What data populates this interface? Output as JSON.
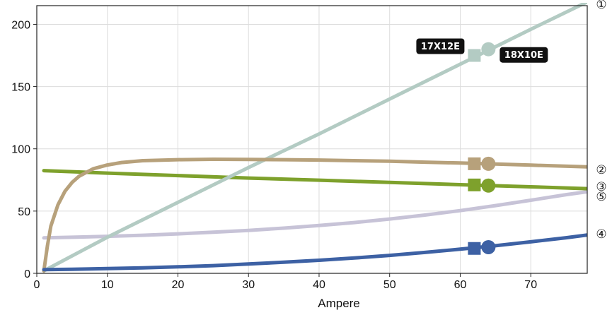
{
  "chart_data": {
    "type": "line",
    "title": "",
    "xlabel": "Ampere",
    "ylabel": "",
    "xlim": [
      0,
      78
    ],
    "ylim": [
      0,
      215
    ],
    "x_ticks": [
      0,
      10,
      20,
      30,
      40,
      50,
      60,
      70
    ],
    "y_ticks": [
      0,
      50,
      100,
      150,
      200
    ],
    "grid": true,
    "series": [
      {
        "name": "①",
        "color": "#b3cbc3",
        "points": [
          [
            1,
            2
          ],
          [
            10,
            29
          ],
          [
            20,
            57
          ],
          [
            30,
            85
          ],
          [
            40,
            112
          ],
          [
            50,
            140
          ],
          [
            60,
            168
          ],
          [
            70,
            196
          ],
          [
            78,
            218
          ]
        ]
      },
      {
        "name": "②",
        "color": "#b7a17b",
        "points": [
          [
            1,
            2
          ],
          [
            1.5,
            22
          ],
          [
            2,
            38
          ],
          [
            3,
            55
          ],
          [
            4,
            66
          ],
          [
            5,
            73
          ],
          [
            6,
            78
          ],
          [
            7,
            81
          ],
          [
            8,
            84
          ],
          [
            10,
            87
          ],
          [
            12,
            89
          ],
          [
            15,
            90.5
          ],
          [
            20,
            91.3
          ],
          [
            25,
            91.6
          ],
          [
            30,
            91.5
          ],
          [
            35,
            91.3
          ],
          [
            40,
            91
          ],
          [
            45,
            90.5
          ],
          [
            50,
            90
          ],
          [
            55,
            89.3
          ],
          [
            60,
            88.6
          ],
          [
            65,
            87.8
          ],
          [
            70,
            86.9
          ],
          [
            78,
            85.5
          ]
        ]
      },
      {
        "name": "③",
        "color": "#7ea12c",
        "points": [
          [
            1,
            82.5
          ],
          [
            10,
            80.5
          ],
          [
            20,
            78.5
          ],
          [
            30,
            76.5
          ],
          [
            40,
            74.8
          ],
          [
            50,
            73
          ],
          [
            60,
            71.2
          ],
          [
            70,
            69.5
          ],
          [
            78,
            68
          ]
        ]
      },
      {
        "name": "④",
        "color": "#3d61a4",
        "points": [
          [
            1,
            3
          ],
          [
            5,
            3.3
          ],
          [
            10,
            3.8
          ],
          [
            15,
            4.4
          ],
          [
            20,
            5.2
          ],
          [
            25,
            6.2
          ],
          [
            30,
            7.5
          ],
          [
            35,
            8.9
          ],
          [
            40,
            10.5
          ],
          [
            45,
            12.3
          ],
          [
            50,
            14.4
          ],
          [
            55,
            16.8
          ],
          [
            60,
            19.4
          ],
          [
            65,
            22.2
          ],
          [
            70,
            25.3
          ],
          [
            75,
            28.6
          ],
          [
            78,
            30.8
          ]
        ]
      },
      {
        "name": "⑤",
        "color": "#c7c3d7",
        "points": [
          [
            1,
            28.5
          ],
          [
            5,
            29
          ],
          [
            10,
            29.7
          ],
          [
            15,
            30.6
          ],
          [
            20,
            31.7
          ],
          [
            25,
            33
          ],
          [
            30,
            34.5
          ],
          [
            35,
            36.3
          ],
          [
            40,
            38.4
          ],
          [
            45,
            40.8
          ],
          [
            50,
            43.6
          ],
          [
            55,
            46.8
          ],
          [
            60,
            50.4
          ],
          [
            65,
            54.4
          ],
          [
            70,
            58.7
          ],
          [
            75,
            63.2
          ],
          [
            78,
            65.5
          ]
        ]
      }
    ],
    "markers": [
      {
        "shape": "square",
        "x": 62,
        "y": 175,
        "color": "#b3cbc3"
      },
      {
        "shape": "circle",
        "x": 64,
        "y": 180,
        "color": "#b3cbc3"
      },
      {
        "shape": "square",
        "x": 62,
        "y": 88,
        "color": "#b7a17b"
      },
      {
        "shape": "circle",
        "x": 64,
        "y": 88,
        "color": "#b7a17b"
      },
      {
        "shape": "square",
        "x": 62,
        "y": 71,
        "color": "#7ea12c"
      },
      {
        "shape": "circle",
        "x": 64,
        "y": 70.5,
        "color": "#7ea12c"
      },
      {
        "shape": "square",
        "x": 62,
        "y": 20,
        "color": "#3d61a4"
      },
      {
        "shape": "circle",
        "x": 64,
        "y": 21,
        "color": "#3d61a4"
      }
    ],
    "annotations": [
      {
        "text": "17X12E",
        "marker": "square"
      },
      {
        "text": "18X10E",
        "marker": "circle"
      }
    ]
  }
}
